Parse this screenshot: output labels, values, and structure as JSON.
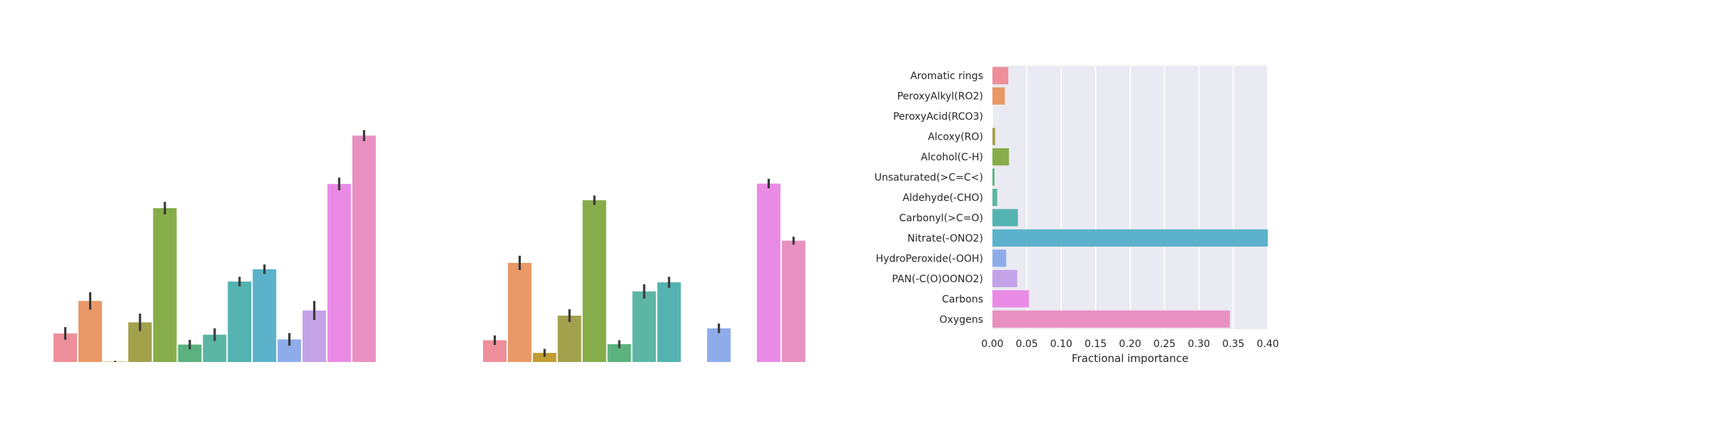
{
  "chart_data": [
    {
      "type": "bar",
      "title": "",
      "values": [
        0.072,
        0.154,
        0.001,
        0.1,
        0.388,
        0.044,
        0.069,
        0.203,
        0.234,
        0.057,
        0.13,
        0.449,
        0.571
      ],
      "error": [
        0.016,
        0.022,
        0.002,
        0.022,
        0.016,
        0.012,
        0.016,
        0.012,
        0.012,
        0.016,
        0.024,
        0.016,
        0.014
      ],
      "colors": [
        "#ee8f9a",
        "#e99867",
        "#c09c33",
        "#a3a14b",
        "#86ad4a",
        "#5bb27e",
        "#5cb6a3",
        "#54b3b1",
        "#5cb2ca",
        "#8facea",
        "#c4a2e8",
        "#e98be5",
        "#e891c1"
      ],
      "grid": false,
      "ylim": [
        0,
        0.62
      ]
    },
    {
      "type": "bar",
      "title": "",
      "values": [
        0.055,
        0.25,
        0.023,
        0.117,
        0.408,
        0.045,
        0.178,
        0.201,
        0.0,
        0.085,
        0.0,
        0.45,
        0.306
      ],
      "error": [
        0.012,
        0.018,
        0.01,
        0.016,
        0.012,
        0.01,
        0.018,
        0.014,
        0.0,
        0.012,
        0.0,
        0.012,
        0.01
      ],
      "colors": [
        "#ee8f9a",
        "#e99867",
        "#c09c33",
        "#a3a14b",
        "#86ad4a",
        "#5bb27e",
        "#5cb6a3",
        "#54b3b1",
        "#5cb2ca",
        "#8facea",
        "#c4a2e8",
        "#e98be5",
        "#e891c1"
      ],
      "grid": false,
      "ylim": [
        0,
        0.62
      ]
    },
    {
      "type": "bar",
      "orientation": "horizontal",
      "title": "",
      "xlabel": "Fractional importance",
      "categories": [
        "Aromatic rings",
        "PeroxyAlkyl(RO2)",
        "PeroxyAcid(RCO3)",
        "Alcoxy(RO)",
        "Alcohol(C-H)",
        "Unsaturated(>C=C<)",
        "Aldehyde(-CHO)",
        "Carbonyl(>C=O)",
        "Nitrate(-ONO2)",
        "HydroPeroxide(-OOH)",
        "PAN(-C(O)OONO2)",
        "Carbons",
        "Oxygens"
      ],
      "values": [
        0.023,
        0.018,
        0.0,
        0.004,
        0.024,
        0.003,
        0.007,
        0.037,
        0.4,
        0.02,
        0.036,
        0.053,
        0.345
      ],
      "colors": [
        "#ee8f9a",
        "#e99867",
        "#c09c33",
        "#a3a14b",
        "#86ad4a",
        "#5bb27e",
        "#5cb6a3",
        "#54b3b1",
        "#5cb2ca",
        "#8facea",
        "#c4a2e8",
        "#e98be5",
        "#e891c1"
      ],
      "xticks": [
        "0.00",
        "0.05",
        "0.10",
        "0.15",
        "0.20",
        "0.25",
        "0.30",
        "0.35",
        "0.40"
      ],
      "xlim": [
        0,
        0.4
      ],
      "grid": true,
      "background": "#eaeaf2"
    }
  ]
}
